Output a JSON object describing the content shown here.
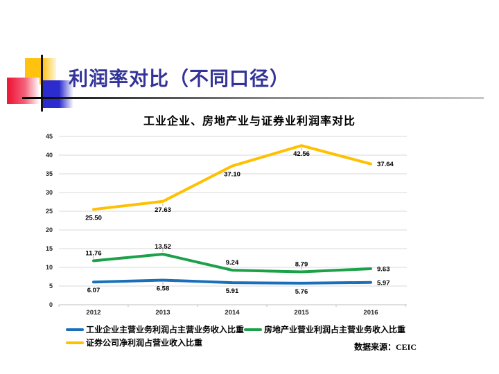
{
  "slide": {
    "title": "利润率对比（不同口径）",
    "title_color": "#333399",
    "background": "#FFFFFF",
    "source": "数据来源：CEIC"
  },
  "chart_data": {
    "type": "line",
    "title": "工业企业、房地产业与证券业利润率对比",
    "categories": [
      "2012",
      "2013",
      "2014",
      "2015",
      "2016"
    ],
    "series": [
      {
        "name": "工业企业主营业务利润占主营业务收入比重",
        "color": "#1B6FBA",
        "values": [
          6.07,
          6.58,
          5.91,
          5.76,
          5.97
        ]
      },
      {
        "name": "房地产业营业利润占主营业务收入比重",
        "color": "#1CA049",
        "values": [
          11.76,
          13.52,
          9.24,
          8.79,
          9.63
        ]
      },
      {
        "name": "证券公司净利润占营业收入比重",
        "color": "#FFC000",
        "values": [
          25.5,
          27.63,
          37.1,
          42.56,
          37.64
        ]
      }
    ],
    "xlabel": "",
    "ylabel": "",
    "ylim": [
      0,
      45
    ],
    "ytick_step": 5,
    "grid": true,
    "data_labels": true,
    "label_decimals": 2,
    "legend_position": "bottom",
    "gridline_color": "#D9D9D9",
    "axis_color": "#BFBFBF",
    "text_color": "#262626"
  }
}
